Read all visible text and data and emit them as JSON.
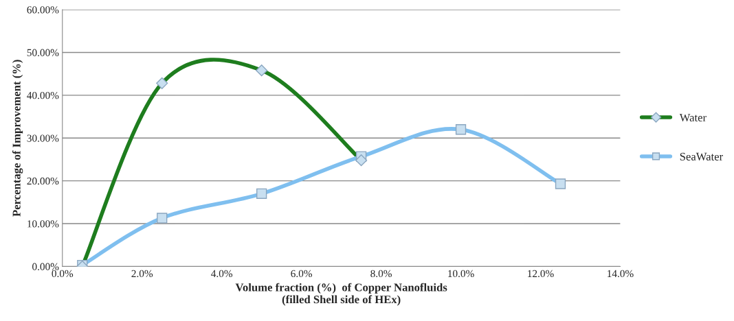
{
  "chart_data": {
    "type": "line",
    "xlabel": "Volume fraction (%)  of Copper Nanofluids\n(filled Shell side of HEx)",
    "ylabel": "Percentage of Improvement (%)",
    "series": [
      {
        "name": "Water",
        "color": "#1e7d1e",
        "marker": "diamond",
        "x": [
          0.5,
          2.5,
          5.0,
          7.5
        ],
        "values": [
          0.0,
          42.8,
          45.8,
          24.8
        ]
      },
      {
        "name": "SeaWater",
        "color": "#7fbfef",
        "marker": "square",
        "x": [
          0.5,
          2.5,
          5.0,
          7.5,
          10.0,
          12.5
        ],
        "values": [
          0.3,
          11.3,
          17.0,
          25.7,
          32.0,
          19.3
        ]
      }
    ],
    "xlim": [
      0,
      14
    ],
    "xticks": [
      {
        "value": 0,
        "label": "0.0%"
      },
      {
        "value": 2,
        "label": "2.0%"
      },
      {
        "value": 4,
        "label": "4.0%"
      },
      {
        "value": 6,
        "label": "6.0%"
      },
      {
        "value": 8,
        "label": "8.0%"
      },
      {
        "value": 10,
        "label": "10.0%"
      },
      {
        "value": 12,
        "label": "12.0%"
      },
      {
        "value": 14,
        "label": "14.0%"
      }
    ],
    "ylim": [
      0,
      60
    ],
    "yticks": [
      {
        "value": 0,
        "label": "0.00%"
      },
      {
        "value": 10,
        "label": "10.00%"
      },
      {
        "value": 20,
        "label": "20.00%"
      },
      {
        "value": 30,
        "label": "30.00%"
      },
      {
        "value": 40,
        "label": "40.00%"
      },
      {
        "value": 50,
        "label": "50.00%"
      },
      {
        "value": 60,
        "label": "60.00%"
      }
    ],
    "grid": "y",
    "legend": "right"
  }
}
